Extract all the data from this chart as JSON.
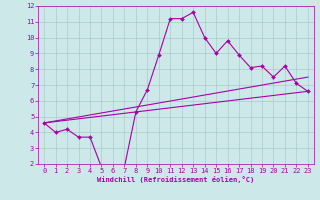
{
  "background_color": "#cce8e8",
  "grid_color": "#aacccc",
  "line_color": "#aa00aa",
  "marker_color": "#aa00aa",
  "xlabel": "Windchill (Refroidissement éolien,°C)",
  "xlim": [
    -0.5,
    23.5
  ],
  "ylim": [
    2,
    12
  ],
  "yticks": [
    2,
    3,
    4,
    5,
    6,
    7,
    8,
    9,
    10,
    11,
    12
  ],
  "xticks": [
    0,
    1,
    2,
    3,
    4,
    5,
    6,
    7,
    8,
    9,
    10,
    11,
    12,
    13,
    14,
    15,
    16,
    17,
    18,
    19,
    20,
    21,
    22,
    23
  ],
  "curve1_x": [
    0,
    1,
    2,
    3,
    4,
    5,
    6,
    7,
    8,
    9,
    10,
    11,
    12,
    13,
    14,
    15,
    16,
    17,
    18,
    19,
    20,
    21,
    22,
    23
  ],
  "curve1_y": [
    4.6,
    4.0,
    4.2,
    3.7,
    3.7,
    1.8,
    1.8,
    1.8,
    5.3,
    6.7,
    8.9,
    11.2,
    11.2,
    11.6,
    10.0,
    9.0,
    9.8,
    8.9,
    8.1,
    8.2,
    7.5,
    8.2,
    7.1,
    6.6
  ],
  "line2_x": [
    0,
    23
  ],
  "line2_y": [
    4.6,
    6.6
  ],
  "line3_x": [
    0,
    23
  ],
  "line3_y": [
    4.6,
    7.5
  ]
}
